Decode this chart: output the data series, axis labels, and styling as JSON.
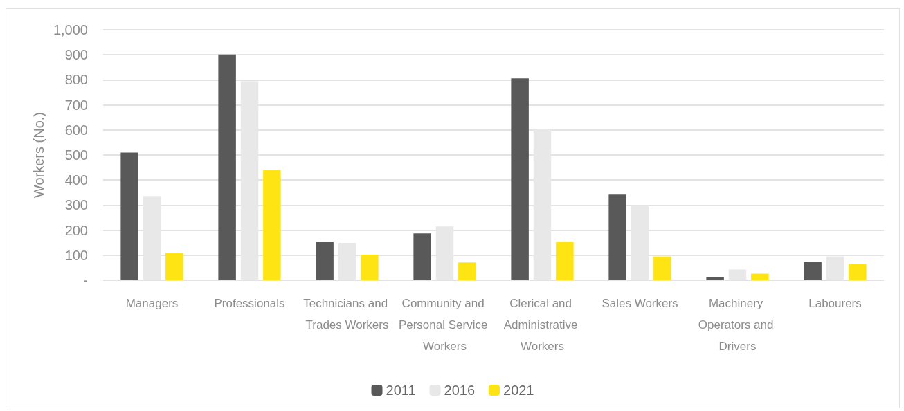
{
  "chart_data": {
    "type": "bar",
    "ylabel": "Workers (No.)",
    "categories": [
      "Managers",
      "Professionals",
      "Technicians and Trades Workers",
      "Community and Personal Service Workers",
      "Clerical and Administrative Workers",
      "Sales Workers",
      "Machinery Operators and Drivers",
      "Labourers"
    ],
    "series": [
      {
        "name": "2011",
        "color": "#595959",
        "values": [
          510,
          901,
          152,
          187,
          806,
          342,
          14,
          72
        ]
      },
      {
        "name": "2016",
        "color": "#e8e8e8",
        "values": [
          336,
          795,
          149,
          215,
          605,
          299,
          43,
          95
        ]
      },
      {
        "name": "2021",
        "color": "#ffe413",
        "values": [
          110,
          440,
          102,
          71,
          152,
          95,
          26,
          65
        ]
      }
    ],
    "ylim": [
      0,
      1000
    ],
    "yticks": [
      {
        "value": 0,
        "label": "-"
      },
      100,
      200,
      300,
      400,
      500,
      600,
      700,
      800,
      900,
      {
        "value": 1000,
        "label": "1,000"
      }
    ],
    "grid": "y",
    "legend": "bottom"
  }
}
